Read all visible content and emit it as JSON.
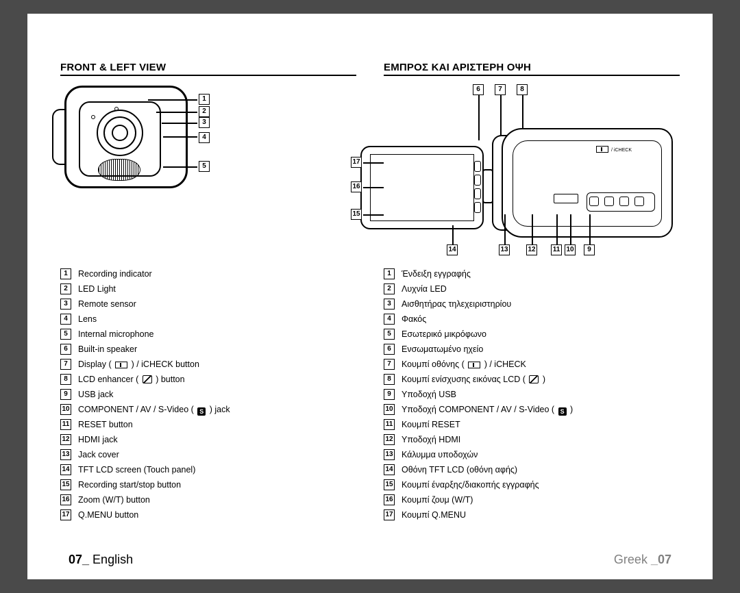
{
  "left": {
    "heading": "FRONT & LEFT VIEW",
    "footer_page": "07_",
    "footer_lang": " English",
    "parts": [
      "Recording indicator",
      "LED Light",
      "Remote sensor",
      "Lens",
      "Internal microphone",
      "Built-in speaker",
      "Display (        ) / iCHECK button",
      "LCD enhancer (      ) button",
      "USB jack",
      "COMPONENT / AV / S-Video (   ) jack",
      "RESET button",
      "HDMI jack",
      "Jack cover",
      "TFT LCD screen (Touch panel)",
      "Recording start/stop button",
      "Zoom (W/T) button",
      "Q.MENU button"
    ]
  },
  "right": {
    "heading": "ΕΜΠΡΟΣ ΚΑΙ ΑΡΙΣΤΕΡΗ ΟΨΗ",
    "footer_lang": "Greek ",
    "footer_page": "_07",
    "parts": [
      "Ένδειξη εγγραφής",
      "Λυχνία LED",
      "Αισθητήρας τηλεχειριστηρίου",
      "Φακός",
      "Εσωτερικό μικρόφωνο",
      "Ενσωματωμένο ηχείο",
      "Κουμπί οθόνης (        ) / iCHECK",
      "Κουμπί ενίσχυσης εικόνας LCD (      )",
      "Υποδοχή USB",
      "Υποδοχή COMPONENT / AV / S-Video (   )",
      "Κουμπί RESET",
      "Υποδοχή HDMI",
      "Κάλυμμα υποδοχών",
      "Οθόνη TFT LCD (οθόνη αφής)",
      "Κουμπί έναρξης/διακοπής εγγραφής",
      "Κουμπί ζουμ (W/T)",
      "Κουμπί Q.MENU"
    ]
  },
  "callouts_left_bubble": [
    "1",
    "2",
    "3",
    "4",
    "5"
  ],
  "callouts_top": [
    "6",
    "7",
    "8"
  ],
  "callouts_bottom": [
    "14",
    "13",
    "12",
    "11",
    "10",
    "9"
  ],
  "callouts_lcd": [
    "17",
    "16",
    "15"
  ],
  "icheck_label": "/ iCHECK"
}
